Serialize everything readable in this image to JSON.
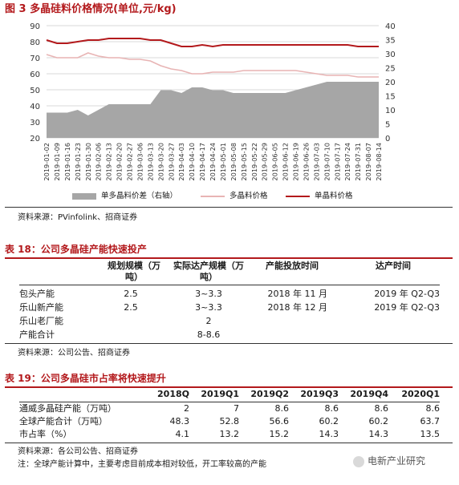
{
  "figure": {
    "title": "图 3  多晶硅料价格情况(单位,元/kg)",
    "source": "资料来源：PVinfolink、招商证券",
    "legend": {
      "area": "单多晶料价差（右轴）",
      "poly": "多晶料价格",
      "mono": "单晶料价格"
    },
    "colors": {
      "area": "#a6a6a6",
      "poly": "#e8b4b4",
      "mono": "#b3191c"
    }
  },
  "chart_data": {
    "type": "line",
    "x": [
      "2019-01-02",
      "2019-01-09",
      "2019-01-16",
      "2019-01-23",
      "2019-01-30",
      "2019-02-06",
      "2019-02-13",
      "2019-02-20",
      "2019-02-27",
      "2019-03-06",
      "2019-03-13",
      "2019-03-20",
      "2019-03-27",
      "2019-04-03",
      "2019-04-10",
      "2019-04-17",
      "2019-04-24",
      "2019-05-01",
      "2019-05-08",
      "2019-05-15",
      "2019-05-22",
      "2019-05-29",
      "2019-06-05",
      "2019-06-12",
      "2019-06-19",
      "2019-06-26",
      "2019-07-03",
      "2019-07-10",
      "2019-07-17",
      "2019-07-24",
      "2019-07-31",
      "2019-08-07",
      "2019-08-14"
    ],
    "series": [
      {
        "name": "单多晶料价差（右轴）",
        "axis": "right",
        "kind": "area",
        "values": [
          9,
          9,
          9,
          10,
          8,
          10,
          12,
          12,
          12,
          12,
          12,
          17,
          17,
          16,
          18,
          18,
          17,
          17,
          16,
          16,
          16,
          16,
          16,
          16,
          17,
          18,
          19,
          20,
          20,
          20,
          20,
          20,
          20
        ]
      },
      {
        "name": "多晶料价格",
        "axis": "left",
        "kind": "line",
        "values": [
          72,
          70,
          70,
          70,
          73,
          71,
          70,
          70,
          69,
          69,
          68,
          65,
          63,
          62,
          60,
          60,
          61,
          61,
          61,
          62,
          62,
          62,
          62,
          62,
          62,
          61,
          60,
          59,
          59,
          59,
          58,
          58,
          58
        ]
      },
      {
        "name": "单晶料价格",
        "axis": "left",
        "kind": "line",
        "values": [
          81,
          79,
          79,
          80,
          81,
          81,
          82,
          82,
          82,
          82,
          81,
          81,
          79,
          77,
          77,
          78,
          77,
          78,
          78,
          78,
          78,
          78,
          78,
          78,
          78,
          78,
          78,
          78,
          78,
          78,
          77,
          77,
          77
        ]
      }
    ],
    "y_left": {
      "min": 20,
      "max": 90,
      "ticks": [
        20,
        30,
        40,
        50,
        60,
        70,
        80,
        90
      ]
    },
    "y_right": {
      "min": 0,
      "max": 40,
      "ticks": [
        0,
        5,
        10,
        15,
        20,
        25,
        30,
        35,
        40
      ]
    },
    "grid": true,
    "legend_position": "bottom"
  },
  "table18": {
    "title": "表 18：公司多晶硅产能快速投产",
    "headers": [
      "规划规模（万吨）",
      "实际达产规模（万吨）",
      "产能投放时间",
      "达产时间"
    ],
    "rows": [
      {
        "name": "包头产能",
        "plan": "2.5",
        "actual": "3~3.3",
        "launch": "2018 年 11 月",
        "reach": "2019 年 Q2-Q3"
      },
      {
        "name": "乐山新产能",
        "plan": "2.5",
        "actual": "3~3.3",
        "launch": "2018 年 12 月",
        "reach": "2019 年 Q2-Q3"
      },
      {
        "name": "乐山老厂能",
        "plan": "",
        "actual": "2",
        "launch": "",
        "reach": ""
      },
      {
        "name": "产能合计",
        "plan": "",
        "actual": "8-8.6",
        "launch": "",
        "reach": ""
      }
    ],
    "source": "资料来源：公司公告、招商证券"
  },
  "table19": {
    "title": "表 19：公司多晶硅市占率将快速提升",
    "headers": [
      "2018Q",
      "2019Q1",
      "2019Q2",
      "2019Q3",
      "2019Q4",
      "2020Q1"
    ],
    "rows": [
      {
        "name": "通威多晶硅产能（万吨）",
        "values": [
          "2",
          "7",
          "8.6",
          "8.6",
          "8.6",
          "8.6"
        ]
      },
      {
        "name": "全球产能合计（万吨）",
        "values": [
          "48.3",
          "52.8",
          "56.6",
          "60.2",
          "60.2",
          "63.7"
        ]
      },
      {
        "name": "市占率（%）",
        "values": [
          "4.1",
          "13.2",
          "15.2",
          "14.3",
          "14.3",
          "13.5"
        ]
      }
    ],
    "source": "资料来源：各公司公告、招商证券",
    "note": "注：全球产能计算中，主要考虑目前成本相对较低，开工率较高的产能"
  },
  "watermark": "电新产业研究"
}
